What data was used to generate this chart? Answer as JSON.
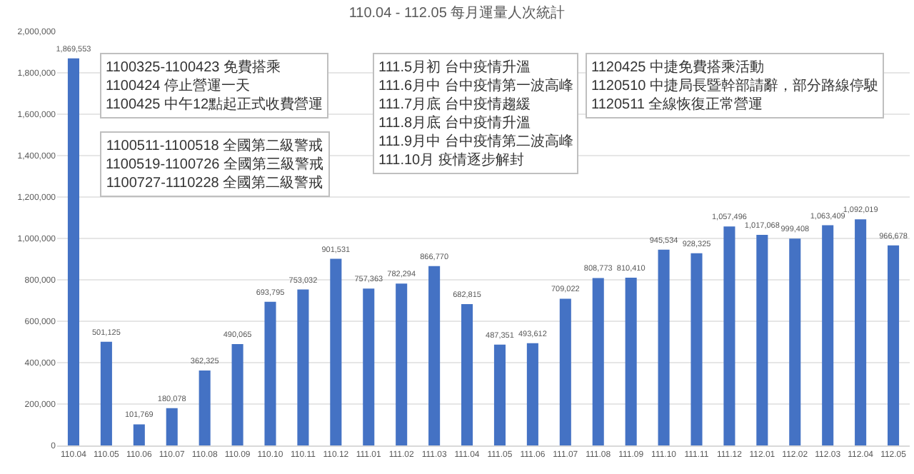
{
  "chart_data": {
    "type": "bar",
    "title": "110.04 - 112.05 每月運量人次統計",
    "categories": [
      "110.04",
      "110.05",
      "110.06",
      "110.07",
      "110.08",
      "110.09",
      "110.10",
      "110.11",
      "110.12",
      "111.01",
      "111.02",
      "111.03",
      "111.04",
      "111.05",
      "111.06",
      "111.07",
      "111.08",
      "111.09",
      "111.10",
      "111.11",
      "111.12",
      "112.01",
      "112.02",
      "112.03",
      "112.04",
      "112.05"
    ],
    "values": [
      1869553,
      501125,
      101769,
      180078,
      362325,
      490065,
      693795,
      753032,
      901531,
      757363,
      782294,
      866770,
      682815,
      487351,
      493612,
      709022,
      808773,
      810410,
      945534,
      928325,
      1057496,
      1017068,
      999408,
      1063409,
      1092019,
      966678
    ],
    "color": "#4472c4",
    "ylim": [
      0,
      2000000
    ],
    "yticks": [
      {
        "value": 0,
        "label": "0"
      },
      {
        "value": 200000,
        "label": "200,000"
      },
      {
        "value": 400000,
        "label": "400,000"
      },
      {
        "value": 600000,
        "label": "600,000"
      },
      {
        "value": 800000,
        "label": "800,000"
      },
      {
        "value": 1000000,
        "label": "1,000,000"
      },
      {
        "value": 1200000,
        "label": "1,200,000"
      },
      {
        "value": 1400000,
        "label": "1,400,000"
      },
      {
        "value": 1600000,
        "label": "1,600,000"
      },
      {
        "value": 1800000,
        "label": "1,800,000"
      },
      {
        "value": 2000000,
        "label": "2,000,000"
      }
    ],
    "grid": "y",
    "value_labels": [
      "1,869,553",
      "501,125",
      "101,769",
      "180,078",
      "362,325",
      "490,065",
      "693,795",
      "753,032",
      "901,531",
      "757,363",
      "782,294",
      "866,770",
      "682,815",
      "487,351",
      "493,612",
      "709,022",
      "808,773",
      "810,410",
      "945,534",
      "928,325",
      "1,057,496",
      "1,017,068",
      "999,408",
      "1,063,409",
      "1,092,019",
      "966,678"
    ],
    "annotations": [
      "1100325-1100423 免費搭乘\n1100424 停止營運一天\n1100425 中午12點起正式收費營運",
      "1100511-1100518 全國第二級警戒\n1100519-1100726 全國第三級警戒\n1100727-1110228 全國第二級警戒",
      "111.5月初 台中疫情升溫\n111.6月中 台中疫情第一波高峰\n111.7月底 台中疫情趨緩\n111.8月底 台中疫情升溫\n111.9月中 台中疫情第二波高峰\n111.10月 疫情逐步解封",
      "1120425 中捷免費搭乘活動\n1120510 中捷局長暨幹部請辭，部分路線停駛\n1120511 全線恢復正常營運"
    ]
  }
}
